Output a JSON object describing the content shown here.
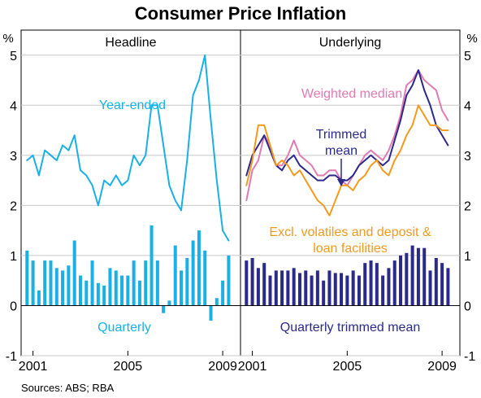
{
  "title": "Consumer Price Inflation",
  "source": "Sources: ABS; RBA",
  "chart_data": {
    "type": "line",
    "title": "Consumer Price Inflation",
    "y_unit": "%",
    "ylim": [
      -1,
      5.5
    ],
    "y_ticks": [
      "-1",
      "0",
      "1",
      "2",
      "3",
      "4",
      "5"
    ],
    "x_range": [
      2000.5,
      2009.75
    ],
    "x_tick_labels": [
      "2001",
      "2005",
      "2009"
    ],
    "x_tick_values": [
      2001,
      2005,
      2009
    ],
    "grid": true,
    "colors": {
      "headline": "#1ab0e6",
      "trimmed_mean": "#2b2a8a",
      "weighted_median": "#e07bb2",
      "excl_volatiles": "#f39a1d",
      "grid": "#c8c8c8",
      "axis": "#000000"
    },
    "panels": [
      {
        "title": "Headline",
        "series": [
          {
            "label": "Year-ended",
            "type": "line",
            "x": [
              2000.75,
              2001.0,
              2001.25,
              2001.5,
              2001.75,
              2002.0,
              2002.25,
              2002.5,
              2002.75,
              2003.0,
              2003.25,
              2003.5,
              2003.75,
              2004.0,
              2004.25,
              2004.5,
              2004.75,
              2005.0,
              2005.25,
              2005.5,
              2005.75,
              2006.0,
              2006.25,
              2006.5,
              2006.75,
              2007.0,
              2007.25,
              2007.5,
              2007.75,
              2008.0,
              2008.25,
              2008.5,
              2008.75,
              2009.0,
              2009.25
            ],
            "y": [
              2.9,
              3.0,
              2.6,
              3.1,
              3.0,
              2.9,
              3.2,
              3.1,
              3.4,
              2.7,
              2.6,
              2.4,
              2.0,
              2.5,
              2.4,
              2.6,
              2.4,
              2.5,
              3.0,
              2.8,
              3.0,
              4.0,
              4.0,
              3.2,
              2.4,
              2.1,
              1.9,
              2.9,
              4.2,
              4.5,
              5.0,
              3.7,
              2.5,
              1.5,
              1.3
            ]
          },
          {
            "label": "Quarterly",
            "type": "bar",
            "x": [
              2000.75,
              2001.0,
              2001.25,
              2001.5,
              2001.75,
              2002.0,
              2002.25,
              2002.5,
              2002.75,
              2003.0,
              2003.25,
              2003.5,
              2003.75,
              2004.0,
              2004.25,
              2004.5,
              2004.75,
              2005.0,
              2005.25,
              2005.5,
              2005.75,
              2006.0,
              2006.25,
              2006.5,
              2006.75,
              2007.0,
              2007.25,
              2007.5,
              2007.75,
              2008.0,
              2008.25,
              2008.5,
              2008.75,
              2009.0,
              2009.25
            ],
            "y": [
              1.1,
              0.9,
              0.3,
              0.9,
              0.9,
              0.75,
              0.7,
              0.8,
              1.3,
              0.6,
              0.5,
              0.9,
              0.45,
              0.4,
              0.75,
              0.7,
              0.6,
              0.6,
              0.9,
              0.5,
              0.9,
              1.6,
              0.9,
              -0.15,
              0.1,
              1.2,
              0.7,
              0.95,
              1.3,
              1.5,
              1.1,
              -0.3,
              0.15,
              0.5,
              1.0
            ]
          }
        ],
        "annotations": [
          "Year-ended",
          "Quarterly"
        ]
      },
      {
        "title": "Underlying",
        "series": [
          {
            "label": "Weighted median",
            "type": "line",
            "x": [
              2000.75,
              2001.0,
              2001.25,
              2001.5,
              2001.75,
              2002.0,
              2002.25,
              2002.5,
              2002.75,
              2003.0,
              2003.25,
              2003.5,
              2003.75,
              2004.0,
              2004.25,
              2004.5,
              2004.75,
              2005.0,
              2005.25,
              2005.5,
              2005.75,
              2006.0,
              2006.25,
              2006.5,
              2006.75,
              2007.0,
              2007.25,
              2007.5,
              2007.75,
              2008.0,
              2008.25,
              2008.5,
              2008.75,
              2009.0,
              2009.25
            ],
            "y": [
              2.1,
              2.7,
              2.9,
              3.4,
              3.2,
              2.8,
              2.8,
              3.0,
              3.3,
              3.0,
              2.9,
              2.8,
              2.6,
              2.6,
              2.7,
              2.7,
              2.5,
              2.4,
              2.6,
              2.8,
              3.0,
              3.1,
              3.0,
              2.9,
              3.1,
              3.4,
              3.8,
              4.4,
              4.5,
              4.7,
              4.5,
              4.4,
              4.3,
              3.9,
              3.7
            ]
          },
          {
            "label": "Trimmed mean",
            "type": "line",
            "x": [
              2000.75,
              2001.0,
              2001.25,
              2001.5,
              2001.75,
              2002.0,
              2002.25,
              2002.5,
              2002.75,
              2003.0,
              2003.25,
              2003.5,
              2003.75,
              2004.0,
              2004.25,
              2004.5,
              2004.75,
              2005.0,
              2005.25,
              2005.5,
              2005.75,
              2006.0,
              2006.25,
              2006.5,
              2006.75,
              2007.0,
              2007.25,
              2007.5,
              2007.75,
              2008.0,
              2008.25,
              2008.5,
              2008.75,
              2009.0,
              2009.25
            ],
            "y": [
              2.6,
              3.0,
              3.2,
              3.4,
              3.1,
              2.8,
              2.7,
              2.9,
              3.0,
              2.8,
              2.7,
              2.6,
              2.5,
              2.5,
              2.6,
              2.6,
              2.5,
              2.5,
              2.6,
              2.8,
              2.9,
              3.0,
              2.9,
              2.8,
              2.9,
              3.3,
              3.7,
              4.2,
              4.4,
              4.7,
              4.3,
              4.0,
              3.6,
              3.4,
              3.2
            ]
          },
          {
            "label": "Excl. volatiles and deposit & loan facilities",
            "type": "line",
            "x": [
              2000.75,
              2001.0,
              2001.25,
              2001.5,
              2001.75,
              2002.0,
              2002.25,
              2002.5,
              2002.75,
              2003.0,
              2003.25,
              2003.5,
              2003.75,
              2004.0,
              2004.25,
              2004.5,
              2004.75,
              2005.0,
              2005.25,
              2005.5,
              2005.75,
              2006.0,
              2006.25,
              2006.5,
              2006.75,
              2007.0,
              2007.25,
              2007.5,
              2007.75,
              2008.0,
              2008.25,
              2008.5,
              2008.75,
              2009.0,
              2009.25
            ],
            "y": [
              2.4,
              2.9,
              3.6,
              3.6,
              3.2,
              2.8,
              2.9,
              2.8,
              2.6,
              2.7,
              2.5,
              2.3,
              2.1,
              2.0,
              1.8,
              2.1,
              2.4,
              2.4,
              2.3,
              2.5,
              2.6,
              2.8,
              2.9,
              2.7,
              2.6,
              2.9,
              3.1,
              3.4,
              3.6,
              4.0,
              3.8,
              3.6,
              3.6,
              3.5,
              3.5
            ]
          },
          {
            "label": "Quarterly trimmed mean",
            "type": "bar",
            "x": [
              2000.75,
              2001.0,
              2001.25,
              2001.5,
              2001.75,
              2002.0,
              2002.25,
              2002.5,
              2002.75,
              2003.0,
              2003.25,
              2003.5,
              2003.75,
              2004.0,
              2004.25,
              2004.5,
              2004.75,
              2005.0,
              2005.25,
              2005.5,
              2005.75,
              2006.0,
              2006.25,
              2006.5,
              2006.75,
              2007.0,
              2007.25,
              2007.5,
              2007.75,
              2008.0,
              2008.25,
              2008.5,
              2008.75,
              2009.0,
              2009.25
            ],
            "y": [
              0.9,
              0.95,
              0.75,
              0.85,
              0.6,
              0.7,
              0.7,
              0.7,
              0.75,
              0.65,
              0.7,
              0.6,
              0.7,
              0.5,
              0.7,
              0.65,
              0.65,
              0.6,
              0.7,
              0.6,
              0.85,
              0.9,
              0.85,
              0.6,
              0.75,
              0.9,
              1.0,
              1.05,
              1.2,
              1.15,
              1.15,
              0.7,
              0.95,
              0.85,
              0.75
            ]
          }
        ],
        "annotations": [
          "Weighted median",
          "Trimmed",
          "mean",
          "Excl. volatiles and deposit &",
          "loan facilities",
          "Quarterly trimmed mean"
        ]
      }
    ]
  }
}
